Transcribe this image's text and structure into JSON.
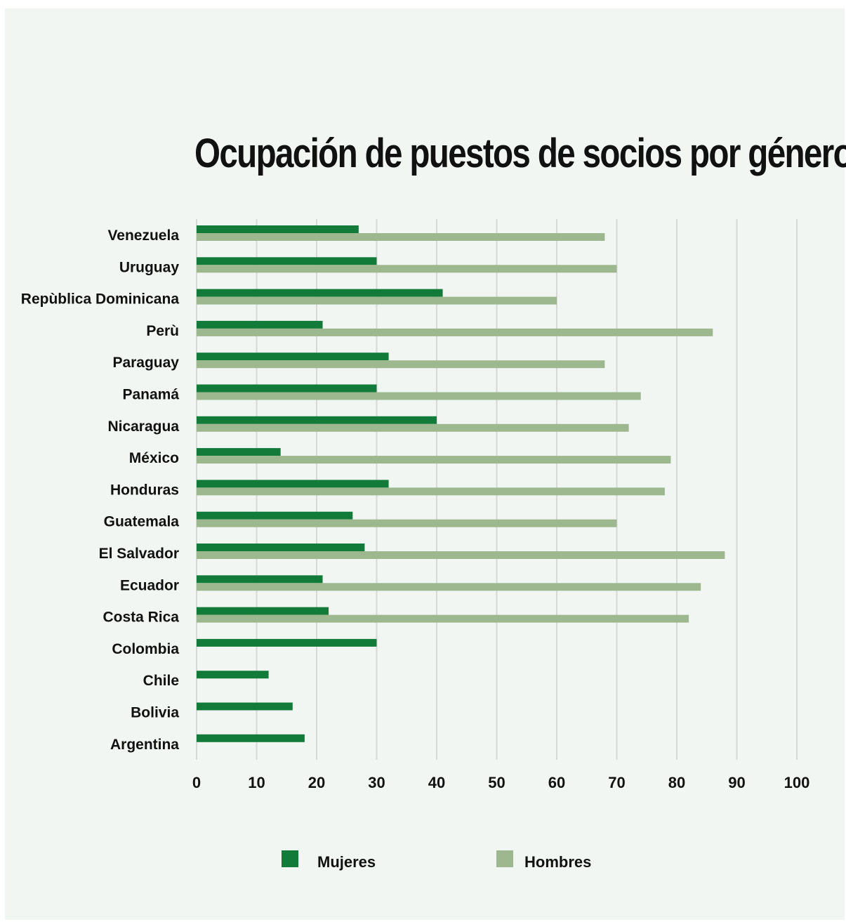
{
  "chart_data": {
    "type": "bar",
    "orientation": "horizontal",
    "title": "Ocupación de puestos de socios por género",
    "categories": [
      "Venezuela",
      "Uruguay",
      "Repùblica Dominicana",
      "Perù",
      "Paraguay",
      "Panamá",
      "Nicaragua",
      "México",
      "Honduras",
      "Guatemala",
      "El Salvador",
      "Ecuador",
      "Costa Rica",
      "Colombia",
      "Chile",
      "Bolivia",
      "Argentina"
    ],
    "series": [
      {
        "name": "Mujeres",
        "color": "#137b3a",
        "values": [
          27,
          30,
          41,
          21,
          32,
          30,
          40,
          14,
          32,
          26,
          28,
          21,
          22,
          30,
          12,
          16,
          18
        ]
      },
      {
        "name": "Hombres",
        "color": "#9db88f",
        "values": [
          68,
          70,
          60,
          86,
          68,
          74,
          72,
          79,
          78,
          70,
          88,
          84,
          82,
          null,
          null,
          null,
          null
        ]
      }
    ],
    "xticks": [
      "0",
      "10",
      "20",
      "30",
      "40",
      "50",
      "60",
      "70",
      "80",
      "90",
      "100"
    ],
    "xlim": [
      0,
      100
    ],
    "grid": true,
    "legend_position": "bottom"
  }
}
